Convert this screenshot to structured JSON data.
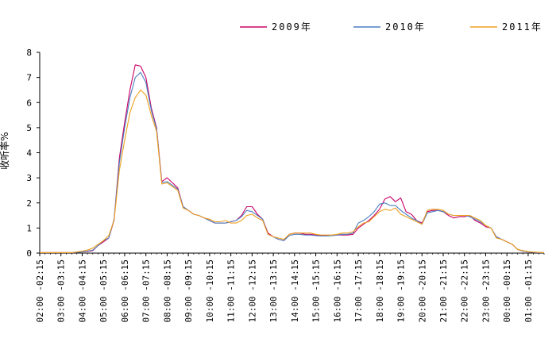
{
  "chart_data": {
    "type": "line",
    "ylabel": "收听率%",
    "ylim": [
      0,
      8
    ],
    "yticks": [
      0,
      1,
      2,
      3,
      4,
      5,
      6,
      7,
      8
    ],
    "grid": false,
    "legend_position": "top",
    "x_labels": [
      "02:00 -02:15",
      "03:00 -03:15",
      "04:00 -04:15",
      "05:00 -05:15",
      "06:00 -06:15",
      "07:00 -07:15",
      "08:00 -08:15",
      "09:00 -09:15",
      "10:00 -10:15",
      "11:00 -11:15",
      "12:00 -12:15",
      "13:00 -13:15",
      "14:00 -14:15",
      "15:00 -15:15",
      "16:00 -16:15",
      "17:00 -17:15",
      "18:00 -18:15",
      "19:00 -19:15",
      "20:00 -20:15",
      "21:00 -21:15",
      "22:00 -22:15",
      "23:00 -23:15",
      "00:00 -00:15",
      "01:00 -01:15"
    ],
    "x_hours": [
      0,
      0.25,
      0.5,
      0.75,
      1,
      1.25,
      1.5,
      1.75,
      2,
      2.25,
      2.5,
      2.75,
      3,
      3.25,
      3.5,
      3.75,
      4,
      4.25,
      4.5,
      4.75,
      5,
      5.25,
      5.5,
      5.75,
      6,
      6.25,
      6.5,
      6.75,
      7,
      7.25,
      7.5,
      7.75,
      8,
      8.25,
      8.5,
      8.75,
      9,
      9.25,
      9.5,
      9.75,
      10,
      10.25,
      10.5,
      10.75,
      11,
      11.25,
      11.5,
      11.75,
      12,
      12.25,
      12.5,
      12.75,
      13,
      13.25,
      13.5,
      13.75,
      14,
      14.25,
      14.5,
      14.75,
      15,
      15.25,
      15.5,
      15.75,
      16,
      16.25,
      16.5,
      16.75,
      17,
      17.25,
      17.5,
      17.75,
      18,
      18.25,
      18.5,
      18.75,
      19,
      19.25,
      19.5,
      19.75,
      20,
      20.25,
      20.5,
      20.75,
      21,
      21.25,
      21.5,
      21.75,
      22,
      22.25,
      22.5,
      22.75,
      23,
      23.25,
      23.5,
      23.75
    ],
    "series": [
      {
        "name": "2009年",
        "color": "#cc0066",
        "values": [
          0.02,
          0.02,
          0.02,
          0.02,
          0.02,
          0.02,
          0.02,
          0.03,
          0.05,
          0.07,
          0.1,
          0.3,
          0.45,
          0.6,
          1.3,
          3.8,
          5.2,
          6.5,
          7.5,
          7.45,
          7.0,
          5.8,
          5.0,
          2.85,
          3.0,
          2.8,
          2.6,
          1.85,
          1.7,
          1.55,
          1.5,
          1.4,
          1.3,
          1.2,
          1.2,
          1.2,
          1.25,
          1.3,
          1.5,
          1.85,
          1.85,
          1.55,
          1.35,
          0.8,
          0.65,
          0.55,
          0.5,
          0.75,
          0.8,
          0.8,
          0.75,
          0.75,
          0.72,
          0.7,
          0.7,
          0.7,
          0.72,
          0.72,
          0.72,
          0.75,
          1.0,
          1.15,
          1.3,
          1.5,
          1.75,
          2.15,
          2.25,
          2.05,
          2.2,
          1.65,
          1.55,
          1.3,
          1.2,
          1.65,
          1.7,
          1.7,
          1.65,
          1.5,
          1.4,
          1.45,
          1.45,
          1.5,
          1.3,
          1.2,
          1.05,
          1.0,
          0.65,
          0.55,
          0.45,
          0.35,
          0.15,
          0.08,
          0.05,
          0.03,
          0.02,
          0.02
        ]
      },
      {
        "name": "2010年",
        "color": "#4a7fc0",
        "values": [
          0.02,
          0.02,
          0.02,
          0.02,
          0.02,
          0.02,
          0.02,
          0.03,
          0.05,
          0.08,
          0.12,
          0.3,
          0.5,
          0.6,
          1.35,
          3.6,
          5.0,
          6.2,
          7.0,
          7.2,
          6.8,
          5.7,
          4.95,
          2.8,
          2.85,
          2.7,
          2.55,
          1.85,
          1.7,
          1.55,
          1.5,
          1.4,
          1.3,
          1.2,
          1.2,
          1.2,
          1.25,
          1.3,
          1.45,
          1.7,
          1.65,
          1.5,
          1.35,
          0.75,
          0.65,
          0.55,
          0.5,
          0.7,
          0.75,
          0.75,
          0.72,
          0.72,
          0.7,
          0.68,
          0.68,
          0.7,
          0.72,
          0.75,
          0.75,
          0.8,
          1.2,
          1.3,
          1.45,
          1.65,
          1.95,
          2.0,
          1.9,
          1.9,
          1.7,
          1.55,
          1.4,
          1.3,
          1.15,
          1.6,
          1.65,
          1.7,
          1.65,
          1.55,
          1.5,
          1.5,
          1.5,
          1.45,
          1.35,
          1.25,
          1.1,
          1.0,
          0.65,
          0.55,
          0.45,
          0.35,
          0.15,
          0.08,
          0.05,
          0.03,
          0.02,
          0.02
        ]
      },
      {
        "name": "2011年",
        "color": "#f0a020",
        "values": [
          0.02,
          0.02,
          0.02,
          0.02,
          0.02,
          0.02,
          0.02,
          0.05,
          0.08,
          0.12,
          0.2,
          0.35,
          0.5,
          0.7,
          1.3,
          3.3,
          4.5,
          5.6,
          6.2,
          6.5,
          6.3,
          5.5,
          4.85,
          2.75,
          2.8,
          2.65,
          2.5,
          1.8,
          1.7,
          1.55,
          1.5,
          1.4,
          1.35,
          1.25,
          1.25,
          1.3,
          1.2,
          1.2,
          1.3,
          1.5,
          1.55,
          1.4,
          1.3,
          0.75,
          0.65,
          0.6,
          0.55,
          0.75,
          0.8,
          0.8,
          0.8,
          0.8,
          0.75,
          0.72,
          0.72,
          0.72,
          0.75,
          0.8,
          0.8,
          0.85,
          1.05,
          1.2,
          1.25,
          1.45,
          1.65,
          1.75,
          1.7,
          1.8,
          1.55,
          1.45,
          1.35,
          1.25,
          1.15,
          1.7,
          1.75,
          1.75,
          1.7,
          1.55,
          1.5,
          1.5,
          1.5,
          1.5,
          1.4,
          1.3,
          1.1,
          1.0,
          0.6,
          0.55,
          0.45,
          0.35,
          0.15,
          0.1,
          0.06,
          0.04,
          0.03,
          0.02
        ]
      }
    ]
  }
}
